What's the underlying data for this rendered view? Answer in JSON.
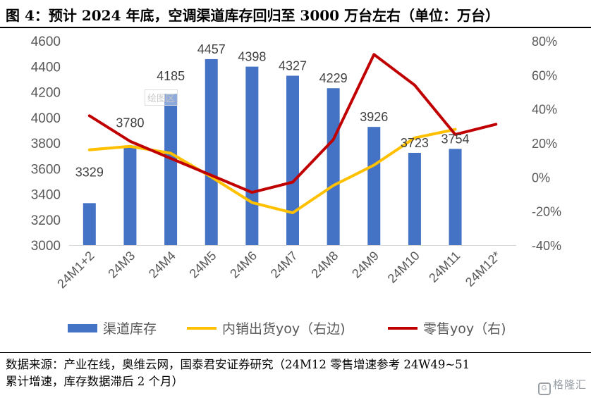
{
  "title": "图 4：预计 2024 年底，空调渠道库存回归至 3000 万台左右（单位：万台）",
  "watermark_text": "绘图区",
  "source_lines": [
    "数据来源：产业在线，奥维云网，国泰君安证券研究（24M12 零售增速参考 24W49~51",
    "累计增速，库存数据滞后 2 个月）"
  ],
  "logo_text": "格隆汇",
  "colors": {
    "bar": "#4472C4",
    "line_ship": "#FFC000",
    "line_retail": "#C00000",
    "axis_text": "#595959"
  },
  "chart_data": {
    "type": "bar",
    "categories": [
      "24M1+2",
      "24M3",
      "24M4",
      "24M5",
      "24M6",
      "24M7",
      "24M8",
      "24M9",
      "24M10",
      "24M11",
      "24M12*"
    ],
    "left_axis": {
      "ylim": [
        3000,
        4600
      ],
      "ticks": [
        "3000",
        "3200",
        "3400",
        "3600",
        "3800",
        "4000",
        "4200",
        "4400",
        "4600"
      ]
    },
    "right_axis": {
      "ylim": [
        -40,
        80
      ],
      "ticks": [
        "-40%",
        "-20%",
        "0%",
        "20%",
        "40%",
        "60%",
        "80%"
      ]
    },
    "grid": false,
    "legend_position": "bottom",
    "series": [
      {
        "name": "渠道库存",
        "type": "bar",
        "axis": "left",
        "color": "#4472C4",
        "values": [
          3329,
          3780,
          4185,
          4457,
          4398,
          4327,
          4229,
          3926,
          3723,
          3754,
          null
        ],
        "labels": [
          "3329",
          "3780",
          "4185",
          "4457",
          "4398",
          "4327",
          "4229",
          "3926",
          "3723",
          "3754",
          ""
        ]
      },
      {
        "name": "内销出货yoy（右边)",
        "type": "line",
        "axis": "right",
        "color": "#FFC000",
        "values": [
          16,
          18,
          14,
          0,
          -15,
          -21,
          -5,
          7,
          23,
          28,
          null
        ]
      },
      {
        "name": "零售yoy（右)",
        "type": "line",
        "axis": "right",
        "color": "#C00000",
        "values": [
          36,
          21,
          11,
          1,
          -9,
          -3,
          22,
          72,
          54,
          25,
          31
        ]
      }
    ]
  }
}
